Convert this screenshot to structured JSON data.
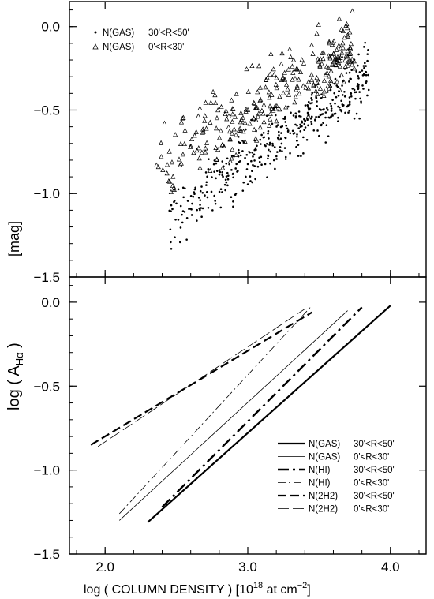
{
  "chart_data": [
    {
      "panel": "top",
      "type": "scatter",
      "xlim": [
        1.75,
        4.25
      ],
      "ylim": [
        -1.5,
        0.15
      ],
      "yticks": [
        0.0,
        -0.5,
        -1.0,
        -1.5
      ],
      "ytick_labels": [
        "0.0",
        "−0.5",
        "−1.0",
        "−1.5"
      ],
      "legend_position": "top-left",
      "series": [
        {
          "name": "N(GAS)",
          "range": "30'<R<50'",
          "marker": "dot",
          "trend": {
            "x0": 2.45,
            "x1": 3.85,
            "slope": 0.62,
            "intercept": -2.67,
            "scatter": 0.09
          },
          "count": 430
        },
        {
          "name": "N(GAS)",
          "range": "0'<R<30'",
          "marker": "triangle",
          "trend": {
            "x0": 2.35,
            "x1": 3.75,
            "slope": 0.56,
            "intercept": -2.2,
            "scatter": 0.11
          },
          "count": 300
        }
      ]
    },
    {
      "panel": "bottom",
      "type": "line",
      "xlim": [
        1.75,
        4.25
      ],
      "ylim": [
        -1.5,
        0.15
      ],
      "xticks": [
        2.0,
        3.0,
        4.0
      ],
      "xtick_labels": [
        "2.0",
        "3.0",
        "4.0"
      ],
      "yticks": [
        0.0,
        -0.5,
        -1.0,
        -1.5
      ],
      "ytick_labels": [
        "0.0",
        "−0.5",
        "−1.0",
        "−1.5"
      ],
      "legend_position": "bottom-right",
      "series": [
        {
          "name": "N(GAS)",
          "range": "30'<R<50'",
          "style": "solid",
          "width": 2.2,
          "x": [
            2.3,
            4.0
          ],
          "y": [
            -1.31,
            -0.02
          ]
        },
        {
          "name": "N(GAS)",
          "range": "0'<R<30'",
          "style": "solid",
          "width": 0.8,
          "x": [
            2.1,
            3.7
          ],
          "y": [
            -1.3,
            -0.05
          ]
        },
        {
          "name": "N(HI)",
          "range": "30'<R<50'",
          "style": "dashdot",
          "width": 2.4,
          "x": [
            2.4,
            3.8
          ],
          "y": [
            -1.22,
            -0.03
          ]
        },
        {
          "name": "N(HI)",
          "range": "0'<R<30'",
          "style": "dashdot",
          "width": 0.8,
          "x": [
            2.1,
            3.45
          ],
          "y": [
            -1.26,
            -0.02
          ]
        },
        {
          "name": "N(2H2)",
          "range": "30'<R<50'",
          "style": "dashed",
          "width": 2.2,
          "x": [
            1.9,
            3.45
          ],
          "y": [
            -0.85,
            -0.06
          ]
        },
        {
          "name": "N(2H2)",
          "range": "0'<R<30'",
          "style": "dashed",
          "width": 0.8,
          "x": [
            1.95,
            3.4
          ],
          "y": [
            -0.86,
            -0.04
          ]
        }
      ]
    }
  ],
  "labels": {
    "ylabel_main": "log ( A",
    "ylabel_sub": "Hα",
    "ylabel_close": " )",
    "ylabel_unit": "[mag]",
    "xlabel_main": "log ( COLUMN  DENSITY )   [10",
    "xlabel_sup1": "18",
    "xlabel_mid": " at cm",
    "xlabel_sup2": "−2",
    "xlabel_close": "]"
  },
  "colors": {
    "ink": "#000000",
    "background": "#ffffff"
  }
}
